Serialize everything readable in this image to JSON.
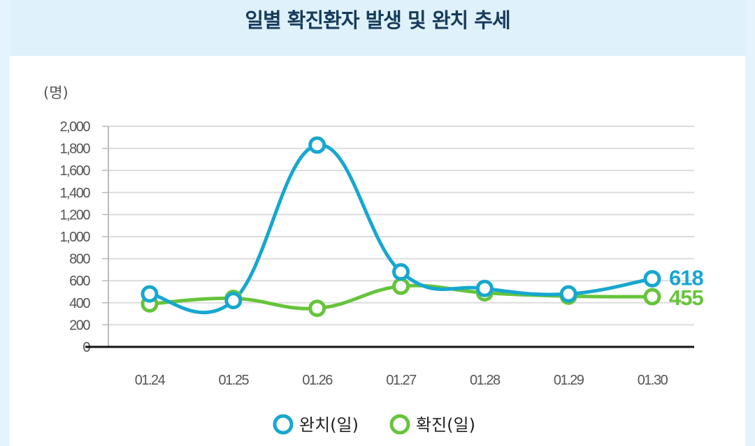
{
  "header": {
    "title": "일별 확진환자 발생 및 완치 추세"
  },
  "chart_data": {
    "type": "line",
    "unit_label": "(명)",
    "categories": [
      "01.24",
      "01.25",
      "01.26",
      "01.27",
      "01.28",
      "01.29",
      "01.30"
    ],
    "y_ticks": [
      "0",
      "200",
      "400",
      "600",
      "800",
      "1,000",
      "1,200",
      "1,400",
      "1,600",
      "1,800",
      "2,000"
    ],
    "ylim": [
      0,
      2000
    ],
    "grid": true,
    "legend_position": "bottom-center",
    "series": [
      {
        "name": "완치(일)",
        "color": "#17a7cf",
        "values": [
          480,
          420,
          1830,
          680,
          530,
          480,
          618
        ],
        "end_label": "618"
      },
      {
        "name": "확진(일)",
        "color": "#66c43b",
        "values": [
          390,
          440,
          350,
          550,
          490,
          460,
          455
        ],
        "end_label": "455"
      }
    ]
  }
}
